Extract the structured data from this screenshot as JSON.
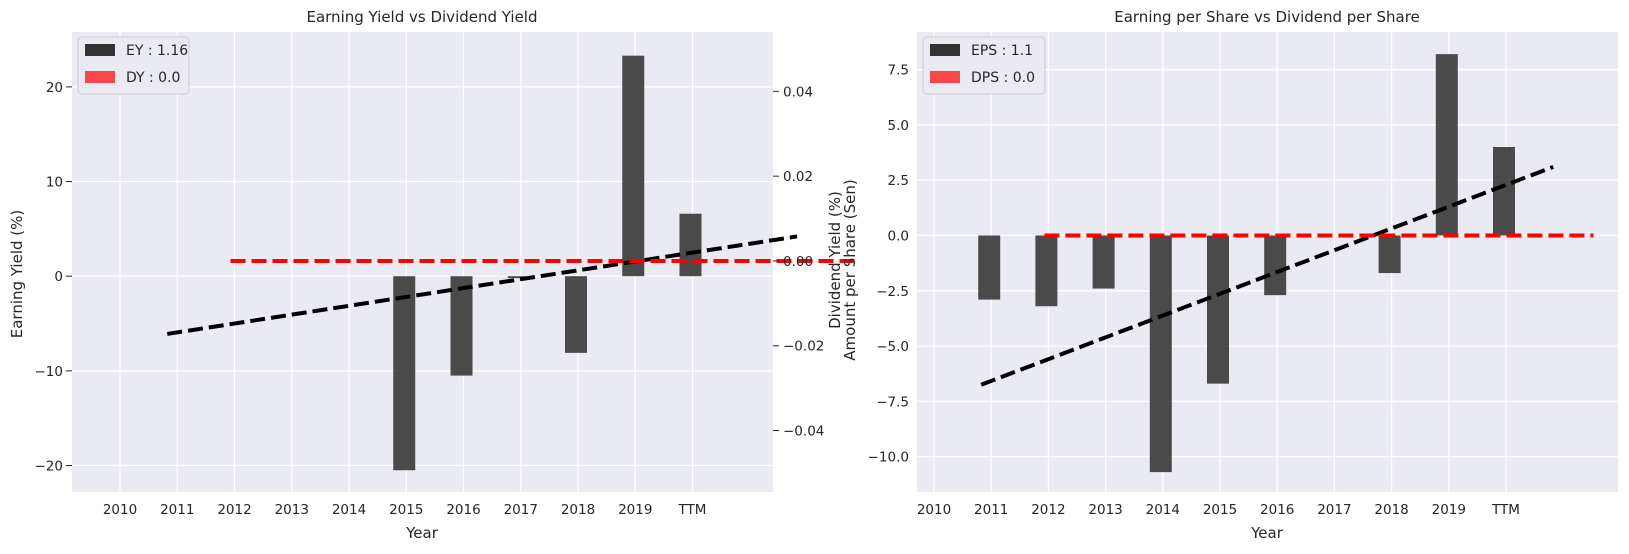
{
  "chart_data": [
    {
      "type": "bar",
      "title": "Earning Yield vs Dividend Yield",
      "xlabel": "Year",
      "ylabel": "Earning Yield (%)",
      "y2label": "Dividend Yield (%)",
      "categories": [
        "2010",
        "2011",
        "2012",
        "2013",
        "2014",
        "2015",
        "2016",
        "2017",
        "2018",
        "2019",
        "TTM"
      ],
      "series": [
        {
          "name": "EY : 1.16",
          "color": "#333333",
          "values": [
            null,
            null,
            null,
            null,
            null,
            -20.5,
            -10.5,
            -0.2,
            -8.1,
            23.3,
            6.6
          ]
        },
        {
          "name": "DY : 0.0",
          "color": "#ff0000",
          "axis": "right",
          "values": [
            null,
            null,
            null,
            null,
            null,
            0.0,
            0.0,
            0.0,
            0.0,
            0.0,
            0.0
          ]
        }
      ],
      "trendlines": [
        {
          "color": "#000000",
          "from": [
            2011,
            -6.1
          ],
          "to": [
            2022,
            4.2
          ]
        },
        {
          "color": "#ff0000",
          "axis": "right",
          "from": [
            2012,
            0.0
          ],
          "to": [
            2023,
            0.0
          ]
        }
      ],
      "ylim": [
        -22.8,
        25.8
      ],
      "y2lim": [
        -0.0545,
        0.054
      ],
      "yticks": [
        "20",
        "10",
        "0",
        "−10",
        "−20"
      ],
      "y2ticks": [
        "0.04",
        "0.02",
        "0.00",
        "−0.02",
        "−0.04"
      ],
      "grid": true,
      "legend": "top-left"
    },
    {
      "type": "bar",
      "title": "Earning per Share vs Dividend per Share",
      "xlabel": "Year",
      "ylabel": "Amount per Share (Sen)",
      "categories": [
        "2010",
        "2011",
        "2012",
        "2013",
        "2014",
        "2015",
        "2016",
        "2017",
        "2018",
        "2019",
        "TTM"
      ],
      "series": [
        {
          "name": "EPS : 1.1",
          "color": "#333333",
          "values": [
            null,
            -2.9,
            -3.2,
            -2.4,
            -10.7,
            -6.7,
            -2.7,
            null,
            -1.7,
            8.2,
            4.0
          ]
        },
        {
          "name": "DPS : 0.0",
          "color": "#ff0000",
          "values": [
            null,
            0.0,
            0.0,
            0.0,
            0.0,
            0.0,
            0.0,
            null,
            0.0,
            0.0,
            0.0
          ]
        }
      ],
      "trendlines": [
        {
          "color": "#000000",
          "from": [
            2011,
            -6.75
          ],
          "to": [
            2021,
            3.1
          ]
        },
        {
          "color": "#ff0000",
          "from": [
            2012,
            0.0
          ],
          "to": [
            2021.6,
            0.0
          ]
        }
      ],
      "ylim": [
        -11.6,
        9.2
      ],
      "yticks": [
        "7.5",
        "5.0",
        "2.5",
        "0.0",
        "−2.5",
        "−5.0",
        "−7.5",
        "−10.0"
      ],
      "grid": true,
      "legend": "top-left"
    }
  ]
}
